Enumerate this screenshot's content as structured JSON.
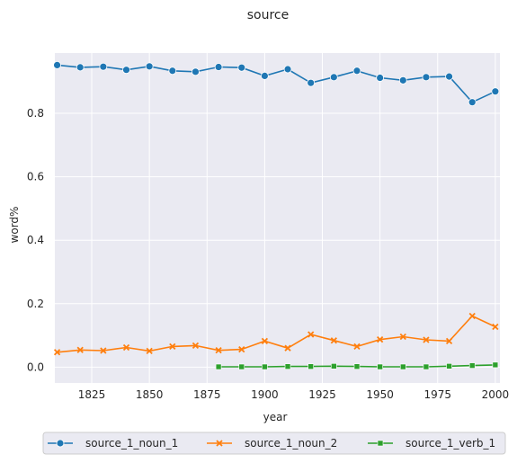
{
  "chart_data": {
    "type": "line",
    "title": "source",
    "xlabel": "year",
    "ylabel": "word%",
    "xlim": [
      1809,
      2002
    ],
    "ylim": [
      -0.05,
      0.99
    ],
    "x_ticks": [
      1825,
      1850,
      1875,
      1900,
      1925,
      1950,
      1975,
      2000
    ],
    "x_tick_labels": [
      "1825",
      "1850",
      "1875",
      "1900",
      "1925",
      "1950",
      "1975",
      "2000"
    ],
    "y_ticks": [
      0.0,
      0.2,
      0.4,
      0.6,
      0.8
    ],
    "y_tick_labels": [
      "0.0",
      "0.2",
      "0.4",
      "0.6",
      "0.8"
    ],
    "grid": true,
    "legend_position": "bottom-center",
    "background_color": "#eaeaf2",
    "series": [
      {
        "name": "source_1_noun_1",
        "color": "#1f77b4",
        "marker": "circle",
        "x": [
          1810,
          1820,
          1830,
          1840,
          1850,
          1860,
          1870,
          1880,
          1890,
          1900,
          1910,
          1920,
          1930,
          1940,
          1950,
          1960,
          1970,
          1980,
          1990,
          2000
        ],
        "y": [
          0.952,
          0.945,
          0.947,
          0.937,
          0.948,
          0.934,
          0.931,
          0.946,
          0.944,
          0.918,
          0.939,
          0.896,
          0.914,
          0.934,
          0.912,
          0.904,
          0.914,
          0.916,
          0.835,
          0.869
        ]
      },
      {
        "name": "source_1_noun_2",
        "color": "#ff7f0e",
        "marker": "x",
        "x": [
          1810,
          1820,
          1830,
          1840,
          1850,
          1860,
          1870,
          1880,
          1890,
          1900,
          1910,
          1920,
          1930,
          1940,
          1950,
          1960,
          1970,
          1980,
          1990,
          2000
        ],
        "y": [
          0.047,
          0.054,
          0.052,
          0.062,
          0.051,
          0.065,
          0.068,
          0.053,
          0.056,
          0.082,
          0.06,
          0.103,
          0.084,
          0.065,
          0.087,
          0.096,
          0.086,
          0.082,
          0.161,
          0.127
        ]
      },
      {
        "name": "source_1_verb_1",
        "color": "#2ca02c",
        "marker": "square",
        "x": [
          1880,
          1890,
          1900,
          1910,
          1920,
          1930,
          1940,
          1950,
          1960,
          1970,
          1980,
          1990,
          2000
        ],
        "y": [
          0.001,
          0.001,
          0.001,
          0.002,
          0.002,
          0.003,
          0.002,
          0.001,
          0.001,
          0.001,
          0.003,
          0.005,
          0.007
        ]
      }
    ]
  }
}
